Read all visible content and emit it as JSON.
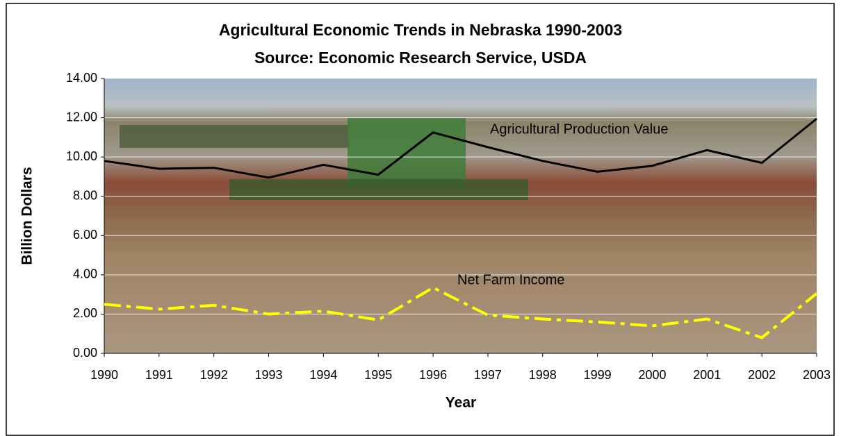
{
  "chart_data": {
    "type": "line",
    "title": "Agricultural Economic Trends in Nebraska  1990-2003",
    "subtitle": "Source: Economic Research Service, USDA",
    "x_label": "Year",
    "y_label": "Billion Dollars",
    "categories": [
      "1990",
      "1991",
      "1992",
      "1993",
      "1994",
      "1995",
      "1996",
      "1997",
      "1998",
      "1999",
      "2000",
      "2001",
      "2002",
      "2003"
    ],
    "series": [
      {
        "name": "Agricultural Production Value",
        "color": "#000000",
        "dash": false,
        "values": [
          9.8,
          9.4,
          9.45,
          8.95,
          9.6,
          9.1,
          11.25,
          10.5,
          9.8,
          9.25,
          9.55,
          10.35,
          9.7,
          11.95
        ]
      },
      {
        "name": "Net Farm Income",
        "color": "#ffff00",
        "dash": true,
        "values": [
          2.5,
          2.25,
          2.45,
          2.0,
          2.15,
          1.7,
          3.35,
          1.95,
          1.75,
          1.6,
          1.4,
          1.75,
          0.8,
          3.05
        ]
      }
    ],
    "ylim": [
      0,
      14
    ],
    "yticks": [
      {
        "value": 0,
        "label": "0.00"
      },
      {
        "value": 2,
        "label": "2.00"
      },
      {
        "value": 4,
        "label": "4.00"
      },
      {
        "value": 6,
        "label": "6.00"
      },
      {
        "value": 8,
        "label": "8.00"
      },
      {
        "value": 10,
        "label": "10.00"
      },
      {
        "value": 12,
        "label": "12.00"
      },
      {
        "value": 14,
        "label": "14.00"
      }
    ],
    "grid": true
  }
}
